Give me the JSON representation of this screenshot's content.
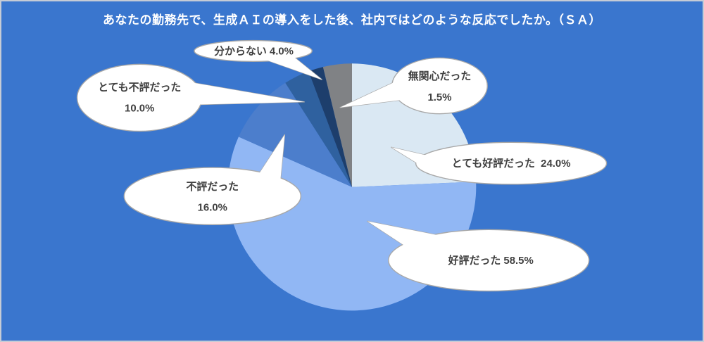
{
  "title": "あなたの勤務先で、生成ＡＩの導入をした後、社内ではどのような反応でしたか。（ＳＡ）",
  "colors": {
    "background": "#3A76CE",
    "title_text": "#FFFFFF",
    "callout_fill": "#FFFFFF",
    "callout_border": "#A8A8A8",
    "callout_text": "#404040"
  },
  "chart_data": {
    "type": "pie",
    "title": "あなたの勤務先で、生成ＡＩの導入をした後、社内ではどのような反応でしたか。（ＳＡ）",
    "unit": "%",
    "legend": false,
    "label_style": "oval speech-bubble callouts",
    "categories": [
      "とても好評だった",
      "好評だった",
      "不評だった",
      "とても不評だった",
      "分からない",
      "無関心だった"
    ],
    "values": [
      24.0,
      58.5,
      16.0,
      10.0,
      4.0,
      1.5
    ],
    "slices": [
      {
        "key": "very-positive",
        "label": "とても好評だった",
        "value": 24.0,
        "color": "#DAE8F3",
        "drawn_start_deg": 0,
        "drawn_end_deg": 87.5,
        "callout_lines": [
          "とても好評だった  24.0%"
        ]
      },
      {
        "key": "positive",
        "label": "好評だった",
        "value": 58.5,
        "color": "#91B7F4",
        "drawn_start_deg": 87.5,
        "drawn_end_deg": 294,
        "callout_lines": [
          "好評だった 58.5%"
        ]
      },
      {
        "key": "negative",
        "label": "不評だった",
        "value": 16.0,
        "color": "#4C7ECC",
        "drawn_start_deg": 294,
        "drawn_end_deg": 327.5,
        "callout_lines": [
          "不評だった",
          "16.0%"
        ]
      },
      {
        "key": "very-negative",
        "label": "とても不評だった",
        "value": 10.0,
        "color": "#2F619F",
        "drawn_start_deg": 327.5,
        "drawn_end_deg": 339.5,
        "callout_lines": [
          "とても不評だった",
          "10.0%"
        ]
      },
      {
        "key": "dont-know",
        "label": "分からない",
        "value": 4.0,
        "color": "#1D3E6C",
        "drawn_start_deg": 339.5,
        "drawn_end_deg": 346.5,
        "callout_lines": [
          "分からない 4.0%"
        ]
      },
      {
        "key": "indifferent",
        "label": "無関心だった",
        "value": 1.5,
        "color": "#808285",
        "drawn_start_deg": 346.5,
        "drawn_end_deg": 360,
        "callout_lines": [
          "無関心だった",
          "1.5%"
        ]
      }
    ]
  }
}
